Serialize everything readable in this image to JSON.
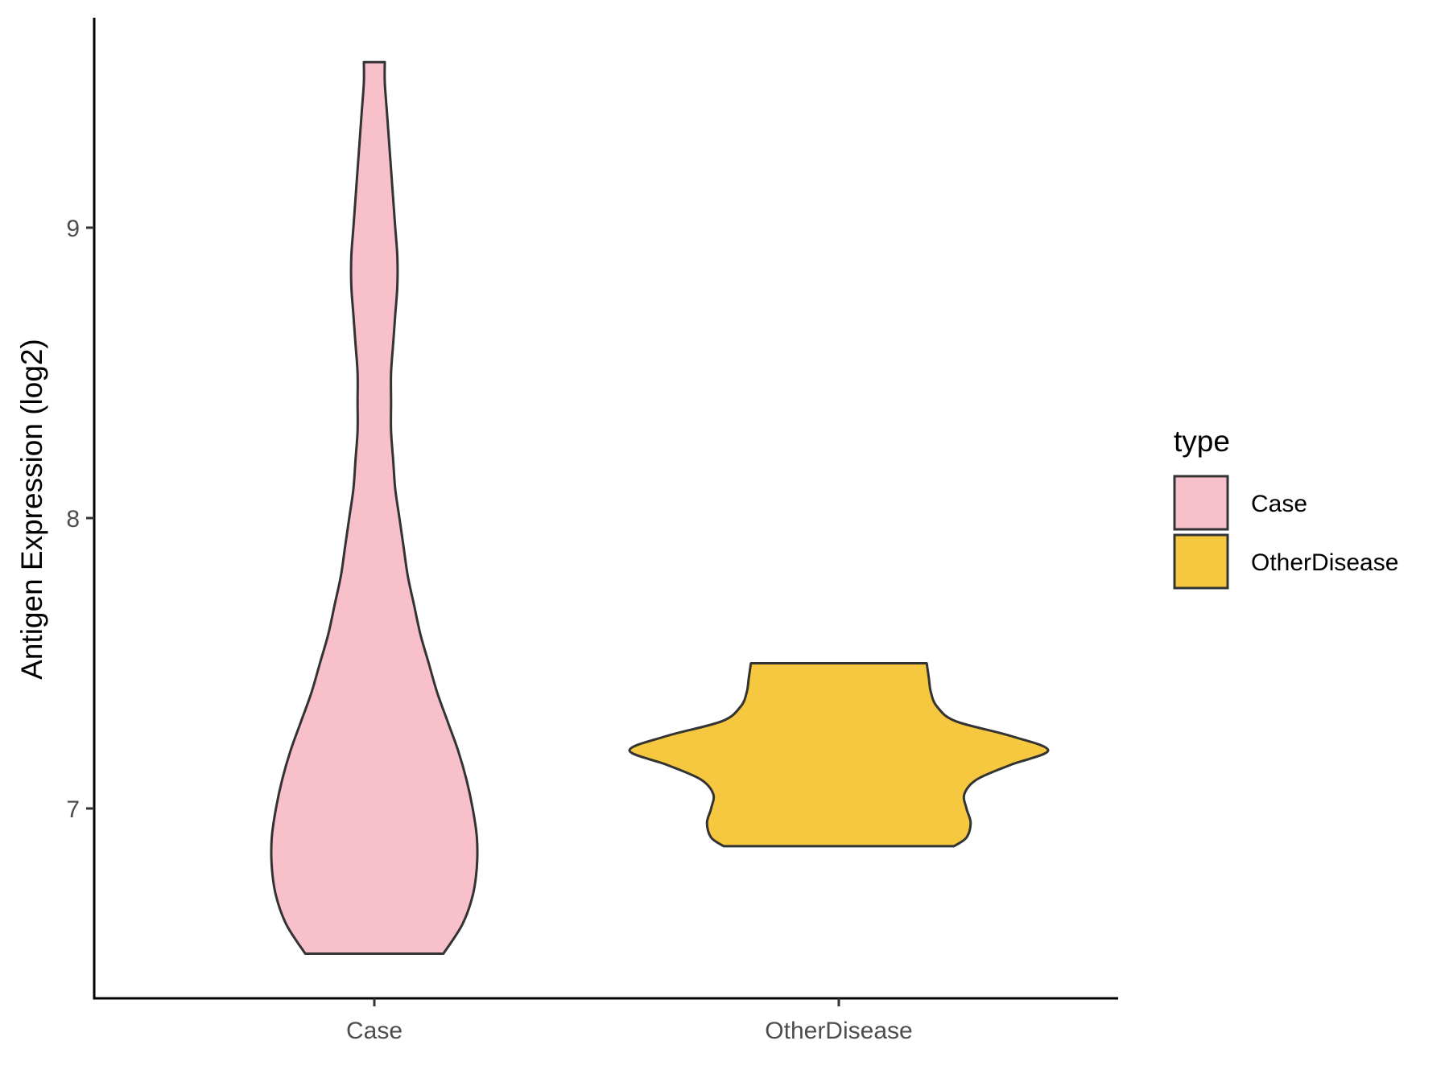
{
  "chart_data": {
    "type": "violin",
    "categories": [
      "Case",
      "OtherDisease"
    ],
    "ylabel": "Antigen Expression (log2)",
    "xlabel": "",
    "ylim": [
      6.35,
      9.72
    ],
    "yticks": [
      7,
      8,
      9
    ],
    "ytick_labels": [
      "7",
      "8",
      "9"
    ],
    "grid": false,
    "legend": {
      "title": "type",
      "position": "right",
      "entries": [
        {
          "label": "Case",
          "color": "#F7C0CB"
        },
        {
          "label": "OtherDisease",
          "color": "#F6C83F"
        }
      ]
    },
    "series": [
      {
        "name": "Case",
        "color": "#F7C0CB",
        "min": 6.5,
        "max": 9.57,
        "density": [
          [
            6.5,
            0.33
          ],
          [
            6.6,
            0.42
          ],
          [
            6.7,
            0.47
          ],
          [
            6.8,
            0.49
          ],
          [
            6.9,
            0.49
          ],
          [
            7.0,
            0.47
          ],
          [
            7.1,
            0.44
          ],
          [
            7.2,
            0.4
          ],
          [
            7.3,
            0.35
          ],
          [
            7.4,
            0.3
          ],
          [
            7.5,
            0.26
          ],
          [
            7.6,
            0.22
          ],
          [
            7.7,
            0.19
          ],
          [
            7.8,
            0.16
          ],
          [
            7.9,
            0.14
          ],
          [
            8.0,
            0.12
          ],
          [
            8.1,
            0.1
          ],
          [
            8.2,
            0.09
          ],
          [
            8.3,
            0.08
          ],
          [
            8.4,
            0.08
          ],
          [
            8.5,
            0.08
          ],
          [
            8.6,
            0.09
          ],
          [
            8.7,
            0.1
          ],
          [
            8.8,
            0.11
          ],
          [
            8.9,
            0.11
          ],
          [
            9.0,
            0.1
          ],
          [
            9.1,
            0.09
          ],
          [
            9.2,
            0.08
          ],
          [
            9.3,
            0.07
          ],
          [
            9.4,
            0.06
          ],
          [
            9.5,
            0.05
          ],
          [
            9.57,
            0.05
          ]
        ]
      },
      {
        "name": "OtherDisease",
        "color": "#F6C83F",
        "min": 6.87,
        "max": 7.5,
        "density": [
          [
            6.87,
            0.55
          ],
          [
            6.9,
            0.61
          ],
          [
            6.95,
            0.63
          ],
          [
            7.0,
            0.61
          ],
          [
            7.05,
            0.6
          ],
          [
            7.1,
            0.66
          ],
          [
            7.15,
            0.82
          ],
          [
            7.2,
            1.0
          ],
          [
            7.25,
            0.82
          ],
          [
            7.3,
            0.56
          ],
          [
            7.35,
            0.47
          ],
          [
            7.4,
            0.44
          ],
          [
            7.45,
            0.43
          ],
          [
            7.5,
            0.42
          ]
        ]
      }
    ]
  }
}
